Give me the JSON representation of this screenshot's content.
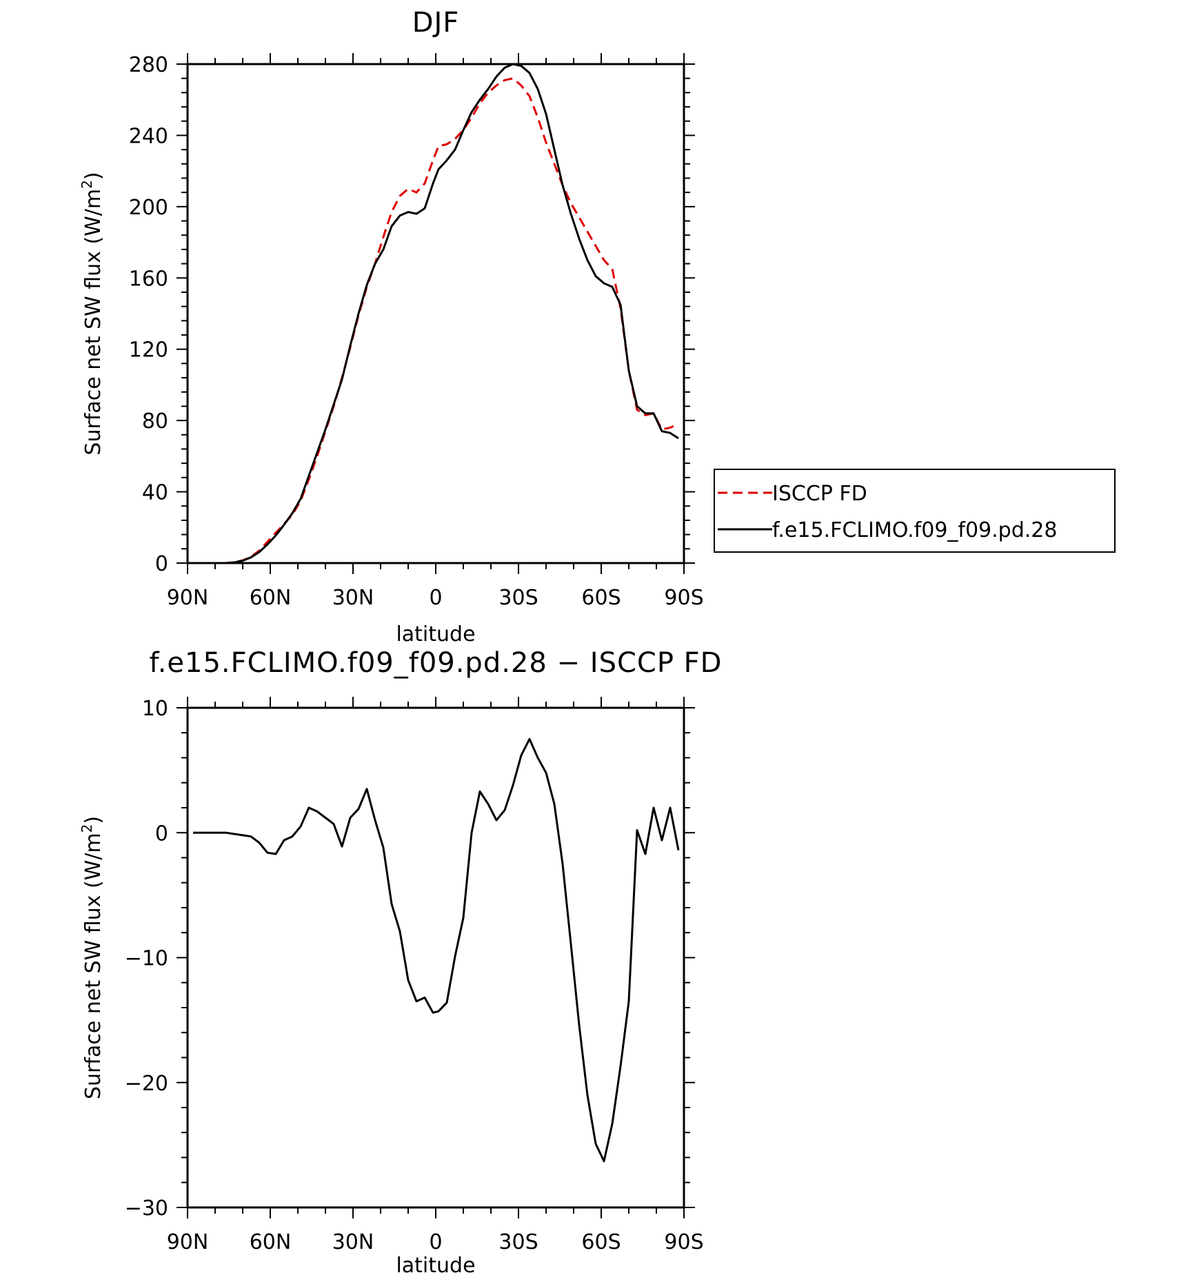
{
  "chart_data": [
    {
      "type": "line",
      "title": "DJF",
      "xlabel": "latitude",
      "ylabel": "Surface net SW flux (W/m²)",
      "x_ticks": [
        "90N",
        "60N",
        "30N",
        "0",
        "30S",
        "60S",
        "90S"
      ],
      "x_tick_values": [
        90,
        60,
        30,
        0,
        -30,
        -60,
        -90
      ],
      "xlim": [
        90,
        -90
      ],
      "ylim": [
        0,
        280
      ],
      "y_ticks": [
        0,
        40,
        80,
        120,
        160,
        200,
        240,
        280
      ],
      "grid": false,
      "legend_position": "outside-right",
      "series": [
        {
          "name": "ISCCP FD",
          "color": "#dd0000",
          "dash": "dashed",
          "x": [
            88,
            85,
            82,
            79,
            76,
            73,
            70,
            67,
            64,
            61,
            58,
            55,
            52,
            49,
            46,
            43,
            40,
            37,
            34,
            31,
            28,
            25,
            22,
            19,
            16,
            13,
            10,
            7,
            4,
            1,
            -1,
            -4,
            -7,
            -10,
            -13,
            -16,
            -19,
            -22,
            -25,
            -28,
            -31,
            -34,
            -37,
            -40,
            -43,
            -46,
            -49,
            -52,
            -55,
            -58,
            -61,
            -64,
            -67,
            -70,
            -73,
            -76,
            -79,
            -82,
            -85,
            -88
          ],
          "y": [
            0,
            0,
            0,
            0,
            0,
            0.5,
            1.5,
            3.5,
            7,
            12,
            17,
            22,
            27,
            35,
            47,
            60,
            74,
            88,
            104,
            121,
            139,
            155,
            168,
            183,
            197,
            206,
            210,
            208,
            213,
            226,
            234,
            235,
            238,
            243,
            250,
            258,
            264,
            268,
            271,
            272,
            268,
            262,
            250,
            236,
            224,
            212,
            202,
            194,
            186,
            178,
            170,
            165,
            143,
            108,
            86,
            83,
            84,
            75,
            76,
            78
          ]
        },
        {
          "name": "f.e15.FCLIMO.f09_f09.pd.28",
          "color": "#000000",
          "dash": "solid",
          "x": [
            88,
            85,
            82,
            79,
            76,
            73,
            70,
            67,
            64,
            61,
            58,
            55,
            52,
            49,
            46,
            43,
            40,
            37,
            34,
            31,
            28,
            25,
            22,
            19,
            16,
            13,
            10,
            7,
            4,
            1,
            -1,
            -4,
            -7,
            -10,
            -13,
            -16,
            -19,
            -22,
            -25,
            -28,
            -31,
            -34,
            -37,
            -40,
            -43,
            -46,
            -49,
            -52,
            -55,
            -58,
            -61,
            -64,
            -67,
            -70,
            -73,
            -76,
            -79,
            -82,
            -85,
            -88
          ],
          "y": [
            0,
            0,
            0,
            0,
            0,
            0.4,
            1.3,
            3.2,
            6.2,
            10.5,
            15.5,
            21.5,
            28,
            36,
            49,
            62,
            75,
            89,
            103,
            122,
            140,
            156,
            168,
            176,
            189,
            195,
            197,
            196,
            199,
            213,
            221,
            226,
            232,
            243,
            253,
            260,
            266,
            273,
            278,
            280,
            279,
            275,
            266,
            252,
            232,
            212,
            196,
            182,
            170,
            161,
            157,
            155,
            145,
            108,
            88,
            84,
            84,
            74,
            73,
            70
          ]
        }
      ]
    },
    {
      "type": "line",
      "title": "f.e15.FCLIMO.f09_f09.pd.28 − ISCCP FD",
      "xlabel": "latitude",
      "ylabel": "Surface net SW flux (W/m²)",
      "x_ticks": [
        "90N",
        "60N",
        "30N",
        "0",
        "30S",
        "60S",
        "90S"
      ],
      "x_tick_values": [
        90,
        60,
        30,
        0,
        -30,
        -60,
        -90
      ],
      "xlim": [
        90,
        -90
      ],
      "ylim": [
        -30,
        10
      ],
      "y_ticks": [
        -30,
        -20,
        -10,
        0,
        10
      ],
      "y_tick_labels": [
        "−30",
        "−20",
        "−10",
        "0",
        "10"
      ],
      "grid": false,
      "series": [
        {
          "name": "",
          "color": "#000000",
          "dash": "solid",
          "x": [
            88,
            85,
            82,
            79,
            76,
            73,
            70,
            67,
            64,
            61,
            58,
            55,
            52,
            49,
            46,
            43,
            40,
            37,
            34,
            31,
            28,
            25,
            22,
            19,
            16,
            13,
            10,
            7,
            4,
            1,
            -1,
            -4,
            -7,
            -10,
            -13,
            -16,
            -19,
            -22,
            -25,
            -28,
            -31,
            -34,
            -37,
            -40,
            -43,
            -46,
            -49,
            -52,
            -55,
            -58,
            -61,
            -64,
            -67,
            -70,
            -73,
            -76,
            -79,
            -82,
            -85,
            -88
          ],
          "y": [
            0,
            0,
            0,
            0,
            0,
            -0.1,
            -0.2,
            -0.3,
            -0.8,
            -1.6,
            -1.7,
            -0.6,
            -0.3,
            0.5,
            2.0,
            1.7,
            1.2,
            0.7,
            -1.1,
            1.2,
            1.9,
            3.5,
            1.0,
            -1.2,
            -5.7,
            -7.9,
            -11.8,
            -13.5,
            -13.2,
            -14.4,
            -14.3,
            -13.6,
            -9.9,
            -6.8,
            0,
            3.3,
            2.3,
            1.0,
            1.8,
            3.8,
            6.2,
            7.5,
            6.0,
            4.8,
            2.3,
            -2.5,
            -8.9,
            -15.4,
            -21.0,
            -24.9,
            -26.3,
            -23.3,
            -18.7,
            -13.5,
            0.2,
            -1.7,
            2.0,
            -0.6,
            2.0,
            -1.4
          ]
        }
      ]
    }
  ]
}
